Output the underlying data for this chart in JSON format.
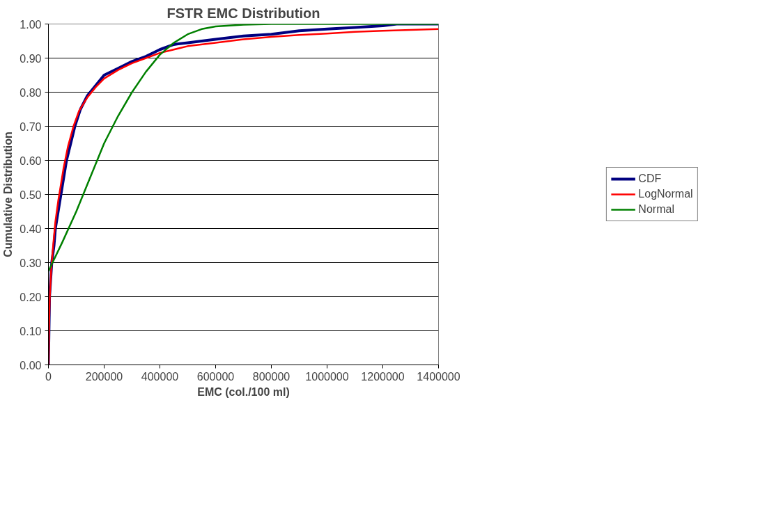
{
  "chart_data": {
    "type": "line",
    "title": "FSTR EMC Distribution",
    "xlabel": "EMC (col./100 ml)",
    "ylabel": "Cumulative Distribution",
    "xlim": [
      0,
      1400000
    ],
    "xticks": [
      0,
      200000,
      400000,
      600000,
      800000,
      1000000,
      1200000,
      1400000
    ],
    "ylim": [
      0,
      1
    ],
    "yticks": [
      {
        "value": 0,
        "label": "0.00"
      },
      {
        "value": 0.1,
        "label": "0.10"
      },
      {
        "value": 0.2,
        "label": "0.20"
      },
      {
        "value": 0.3,
        "label": "0.30"
      },
      {
        "value": 0.4,
        "label": "0.40"
      },
      {
        "value": 0.5,
        "label": "0.50"
      },
      {
        "value": 0.6,
        "label": "0.60"
      },
      {
        "value": 0.7,
        "label": "0.70"
      },
      {
        "value": 0.8,
        "label": "0.80"
      },
      {
        "value": 0.9,
        "label": "0.90"
      },
      {
        "value": 1,
        "label": "1.00"
      }
    ],
    "grid": "y",
    "legend": "right",
    "marker": "none",
    "series": [
      {
        "name": "CDF",
        "color": "#000080",
        "x": [
          0,
          2000,
          4000,
          8000,
          12000,
          20000,
          25000,
          35000,
          45000,
          55000,
          65000,
          80000,
          95000,
          115000,
          140000,
          170000,
          200000,
          250000,
          300000,
          350000,
          400000,
          450000,
          500000,
          600000,
          700000,
          800000,
          900000,
          1000000,
          1100000,
          1200000,
          1250000,
          1400000
        ],
        "values": [
          0,
          0.1,
          0.2,
          0.25,
          0.3,
          0.35,
          0.4,
          0.45,
          0.5,
          0.55,
          0.6,
          0.65,
          0.7,
          0.75,
          0.79,
          0.82,
          0.85,
          0.87,
          0.89,
          0.905,
          0.925,
          0.94,
          0.945,
          0.955,
          0.965,
          0.97,
          0.98,
          0.985,
          0.99,
          0.995,
          1,
          1
        ]
      },
      {
        "name": "LogNormal",
        "color": "#ff0000",
        "x": [
          0,
          2000,
          5000,
          10000,
          17000,
          25000,
          35000,
          45000,
          55000,
          70000,
          90000,
          110000,
          140000,
          170000,
          200000,
          250000,
          300000,
          350000,
          400000,
          500000,
          600000,
          700000,
          800000,
          900000,
          1000000,
          1100000,
          1200000,
          1400000
        ],
        "values": [
          0,
          0.1,
          0.2,
          0.28,
          0.35,
          0.42,
          0.48,
          0.53,
          0.58,
          0.64,
          0.7,
          0.745,
          0.785,
          0.815,
          0.84,
          0.865,
          0.885,
          0.9,
          0.915,
          0.935,
          0.945,
          0.955,
          0.962,
          0.968,
          0.972,
          0.977,
          0.98,
          0.985
        ]
      },
      {
        "name": "Normal",
        "color": "#008000",
        "x": [
          0,
          50000,
          100000,
          150000,
          200000,
          250000,
          300000,
          350000,
          400000,
          450000,
          500000,
          550000,
          600000,
          700000,
          800000,
          1400000
        ],
        "values": [
          0.275,
          0.36,
          0.45,
          0.55,
          0.65,
          0.73,
          0.8,
          0.86,
          0.91,
          0.945,
          0.97,
          0.985,
          0.993,
          0.998,
          1,
          1
        ]
      }
    ]
  }
}
